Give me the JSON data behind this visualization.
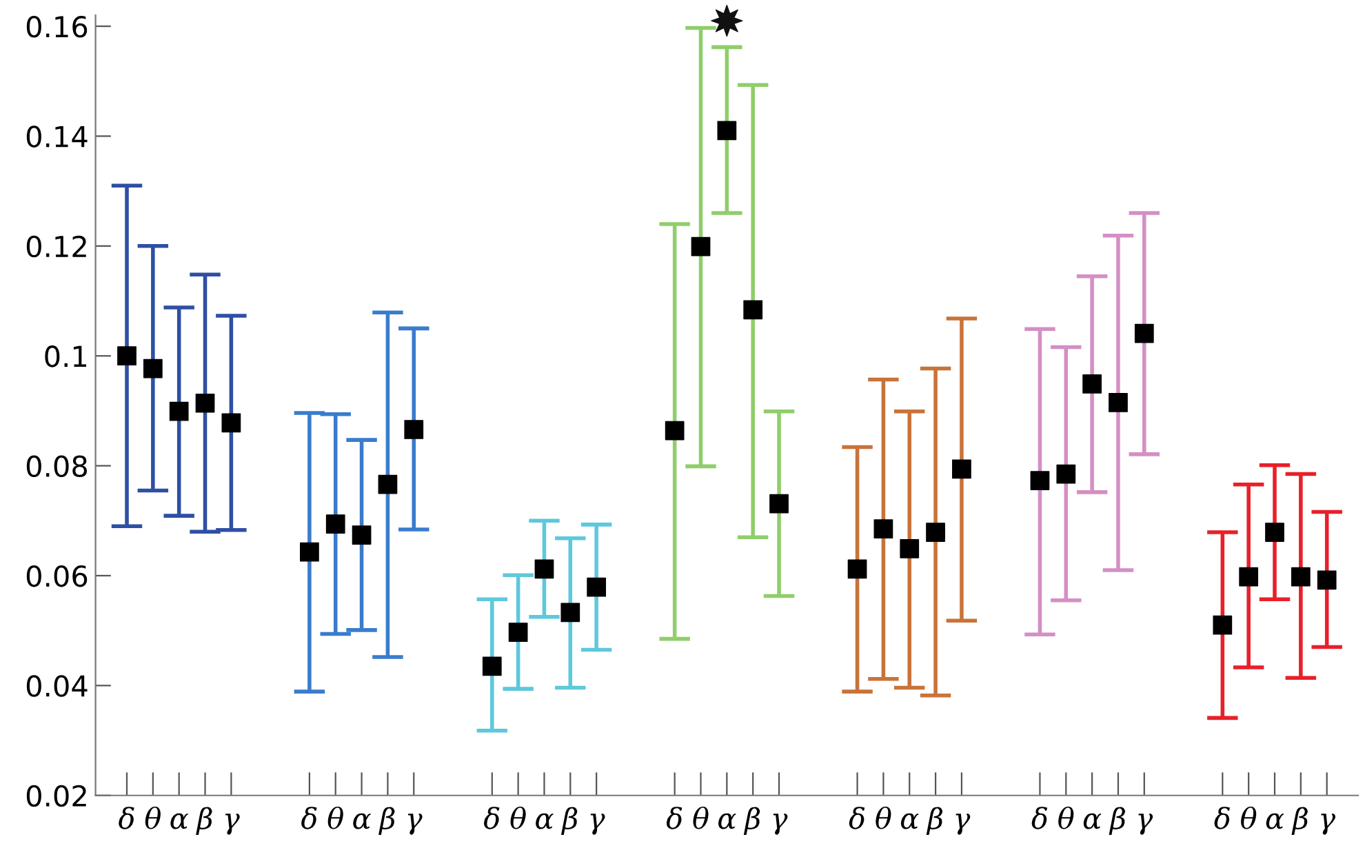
{
  "chart_data": {
    "type": "scatter",
    "categories": [
      "δ",
      "θ",
      "α",
      "β",
      "γ",
      "δ",
      "θ",
      "α",
      "β",
      "γ",
      "δ",
      "θ",
      "α",
      "β",
      "γ",
      "δ",
      "θ",
      "α",
      "β",
      "γ",
      "δ",
      "θ",
      "α",
      "β",
      "γ",
      "δ",
      "θ",
      "α",
      "β",
      "γ",
      "δ",
      "θ",
      "α",
      "β",
      "γ"
    ],
    "ylim": [
      0.02,
      0.162
    ],
    "yticks": [
      0.02,
      0.04,
      0.06,
      {
        "value": 0.08,
        "label": "0.08"
      },
      {
        "value": 0.1,
        "label": "0.1"
      },
      0.12,
      0.14,
      0.16
    ],
    "grid": false,
    "legend": false,
    "marker": "square",
    "series": [
      {
        "color": "#2e4fa3",
        "colors": [
          "#000000",
          "#000000",
          "#000000",
          "#000000",
          "#000000",
          null,
          null,
          null,
          null,
          null,
          null,
          null,
          null,
          null,
          null,
          null,
          null,
          null,
          null,
          null,
          null,
          null,
          null,
          null,
          null,
          null,
          null,
          null,
          null,
          null,
          null,
          null,
          null,
          null,
          null
        ],
        "values": [
          0.1,
          0.0977,
          0.0899,
          0.0914,
          0.0878,
          null,
          null,
          null,
          null,
          null,
          null,
          null,
          null,
          null,
          null,
          null,
          null,
          null,
          null,
          null,
          null,
          null,
          null,
          null,
          null,
          null,
          null,
          null,
          null,
          null,
          null,
          null,
          null,
          null,
          null
        ],
        "errors": [
          [
            0.069,
            0.131
          ],
          [
            0.0755,
            0.12
          ],
          [
            0.0709,
            0.1088
          ],
          [
            0.068,
            0.1148
          ],
          [
            0.0683,
            0.1073
          ],
          null,
          null,
          null,
          null,
          null,
          null,
          null,
          null,
          null,
          null,
          null,
          null,
          null,
          null,
          null,
          null,
          null,
          null,
          null,
          null,
          null,
          null,
          null,
          null,
          null,
          null,
          null,
          null,
          null,
          null
        ]
      },
      {
        "color": "#3a7ccc",
        "colors": [
          null,
          null,
          null,
          null,
          null,
          "#000000",
          "#000000",
          "#000000",
          "#000000",
          "#000000",
          null,
          null,
          null,
          null,
          null,
          null,
          null,
          null,
          null,
          null,
          null,
          null,
          null,
          null,
          null,
          null,
          null,
          null,
          null,
          null,
          null,
          null,
          null,
          null,
          null
        ],
        "values": [
          null,
          null,
          null,
          null,
          null,
          0.0643,
          0.0694,
          0.0674,
          0.0766,
          0.0866,
          null,
          null,
          null,
          null,
          null,
          null,
          null,
          null,
          null,
          null,
          null,
          null,
          null,
          null,
          null,
          null,
          null,
          null,
          null,
          null,
          null,
          null,
          null,
          null,
          null
        ],
        "errors": [
          null,
          null,
          null,
          null,
          null,
          [
            0.0389,
            0.0896
          ],
          [
            0.0494,
            0.0894
          ],
          [
            0.0501,
            0.0847
          ],
          [
            0.0452,
            0.1079
          ],
          [
            0.0684,
            0.105
          ],
          null,
          null,
          null,
          null,
          null,
          null,
          null,
          null,
          null,
          null,
          null,
          null,
          null,
          null,
          null,
          null,
          null,
          null,
          null,
          null,
          null,
          null,
          null,
          null,
          null
        ]
      },
      {
        "color": "#5ec8dc",
        "colors": [
          null,
          null,
          null,
          null,
          null,
          null,
          null,
          null,
          null,
          null,
          "#000000",
          "#000000",
          "#000000",
          "#000000",
          "#000000",
          null,
          null,
          null,
          null,
          null,
          null,
          null,
          null,
          null,
          null,
          null,
          null,
          null,
          null,
          null,
          null,
          null,
          null,
          null,
          null
        ],
        "values": [
          null,
          null,
          null,
          null,
          null,
          null,
          null,
          null,
          null,
          null,
          0.0435,
          0.0497,
          0.0612,
          0.0533,
          0.0579,
          null,
          null,
          null,
          null,
          null,
          null,
          null,
          null,
          null,
          null,
          null,
          null,
          null,
          null,
          null,
          null,
          null,
          null,
          null,
          null
        ],
        "errors": [
          null,
          null,
          null,
          null,
          null,
          null,
          null,
          null,
          null,
          null,
          [
            0.0318,
            0.0557
          ],
          [
            0.0394,
            0.0601
          ],
          [
            0.0525,
            0.07
          ],
          [
            0.0396,
            0.0668
          ],
          [
            0.0465,
            0.0693
          ],
          null,
          null,
          null,
          null,
          null,
          null,
          null,
          null,
          null,
          null,
          null,
          null,
          null,
          null,
          null,
          null,
          null,
          null,
          null,
          null
        ]
      },
      {
        "color": "#8fce6a",
        "colors": [
          null,
          null,
          null,
          null,
          null,
          null,
          null,
          null,
          null,
          null,
          null,
          null,
          null,
          null,
          null,
          "#000000",
          "#000000",
          "#000000",
          "#000000",
          "#000000",
          null,
          null,
          null,
          null,
          null,
          null,
          null,
          null,
          null,
          null,
          null,
          null,
          null,
          null,
          null
        ],
        "values": [
          null,
          null,
          null,
          null,
          null,
          null,
          null,
          null,
          null,
          null,
          null,
          null,
          null,
          null,
          null,
          0.0864,
          0.1199,
          0.141,
          0.1084,
          0.0731,
          null,
          null,
          null,
          null,
          null,
          null,
          null,
          null,
          null,
          null,
          null,
          null,
          null,
          null,
          null
        ],
        "errors": [
          null,
          null,
          null,
          null,
          null,
          null,
          null,
          null,
          null,
          null,
          null,
          null,
          null,
          null,
          null,
          [
            0.0485,
            0.124
          ],
          [
            0.0799,
            0.1597
          ],
          [
            0.126,
            0.1562
          ],
          [
            0.067,
            0.1493
          ],
          [
            0.0563,
            0.0899
          ],
          null,
          null,
          null,
          null,
          null,
          null,
          null,
          null,
          null,
          null,
          null,
          null,
          null,
          null,
          null
        ]
      },
      {
        "color": "#c8733a",
        "colors": [
          null,
          null,
          null,
          null,
          null,
          null,
          null,
          null,
          null,
          null,
          null,
          null,
          null,
          null,
          null,
          null,
          null,
          null,
          null,
          null,
          "#000000",
          "#000000",
          "#000000",
          "#000000",
          "#000000",
          null,
          null,
          null,
          null,
          null,
          null,
          null,
          null,
          null,
          null
        ],
        "values": [
          null,
          null,
          null,
          null,
          null,
          null,
          null,
          null,
          null,
          null,
          null,
          null,
          null,
          null,
          null,
          null,
          null,
          null,
          null,
          null,
          0.0612,
          0.0685,
          0.0649,
          0.0679,
          0.0794,
          null,
          null,
          null,
          null,
          null,
          null,
          null,
          null,
          null,
          null
        ],
        "errors": [
          null,
          null,
          null,
          null,
          null,
          null,
          null,
          null,
          null,
          null,
          null,
          null,
          null,
          null,
          null,
          null,
          null,
          null,
          null,
          null,
          [
            0.0389,
            0.0834
          ],
          [
            0.0412,
            0.0957
          ],
          [
            0.0396,
            0.0899
          ],
          [
            0.0382,
            0.0977
          ],
          [
            0.0518,
            0.1068
          ],
          null,
          null,
          null,
          null,
          null,
          null,
          null,
          null,
          null,
          null
        ]
      },
      {
        "color": "#d48fc4",
        "colors": [
          null,
          null,
          null,
          null,
          null,
          null,
          null,
          null,
          null,
          null,
          null,
          null,
          null,
          null,
          null,
          null,
          null,
          null,
          null,
          null,
          null,
          null,
          null,
          null,
          null,
          "#000000",
          "#000000",
          "#000000",
          "#000000",
          "#000000",
          null,
          null,
          null,
          null,
          null
        ],
        "values": [
          null,
          null,
          null,
          null,
          null,
          null,
          null,
          null,
          null,
          null,
          null,
          null,
          null,
          null,
          null,
          null,
          null,
          null,
          null,
          null,
          null,
          null,
          null,
          null,
          null,
          0.0773,
          0.0785,
          0.0949,
          0.0915,
          0.1041,
          null,
          null,
          null,
          null,
          null
        ],
        "errors": [
          null,
          null,
          null,
          null,
          null,
          null,
          null,
          null,
          null,
          null,
          null,
          null,
          null,
          null,
          null,
          null,
          null,
          null,
          null,
          null,
          null,
          null,
          null,
          null,
          null,
          [
            0.0493,
            0.1049
          ],
          [
            0.0555,
            0.1016
          ],
          [
            0.0752,
            0.1145
          ],
          [
            0.061,
            0.1219
          ],
          [
            0.0821,
            0.126
          ],
          null,
          null,
          null,
          null,
          null
        ]
      },
      {
        "color": "#e8202a",
        "colors": [
          null,
          null,
          null,
          null,
          null,
          null,
          null,
          null,
          null,
          null,
          null,
          null,
          null,
          null,
          null,
          null,
          null,
          null,
          null,
          null,
          null,
          null,
          null,
          null,
          null,
          null,
          null,
          null,
          null,
          null,
          "#000000",
          "#000000",
          "#000000",
          "#000000",
          "#000000"
        ],
        "values": [
          null,
          null,
          null,
          null,
          null,
          null,
          null,
          null,
          null,
          null,
          null,
          null,
          null,
          null,
          null,
          null,
          null,
          null,
          null,
          null,
          null,
          null,
          null,
          null,
          null,
          null,
          null,
          null,
          null,
          null,
          0.051,
          0.0598,
          0.0679,
          0.0598,
          0.0592
        ],
        "errors": [
          null,
          null,
          null,
          null,
          null,
          null,
          null,
          null,
          null,
          null,
          null,
          null,
          null,
          null,
          null,
          null,
          null,
          null,
          null,
          null,
          null,
          null,
          null,
          null,
          null,
          null,
          null,
          null,
          null,
          null,
          [
            0.0341,
            0.0679
          ],
          [
            0.0433,
            0.0766
          ],
          [
            0.0557,
            0.0801
          ],
          [
            0.0414,
            0.0785
          ],
          [
            0.047,
            0.0716
          ]
        ]
      },
      {
        "color": "#111111",
        "marker": "star",
        "values": [
          null,
          null,
          null,
          null,
          null,
          null,
          null,
          null,
          null,
          null,
          null,
          null,
          null,
          null,
          null,
          null,
          null,
          0.161,
          null,
          null,
          null,
          null,
          null,
          null,
          null,
          null,
          null,
          null,
          null,
          null,
          null,
          null,
          null,
          null,
          null
        ]
      }
    ]
  }
}
